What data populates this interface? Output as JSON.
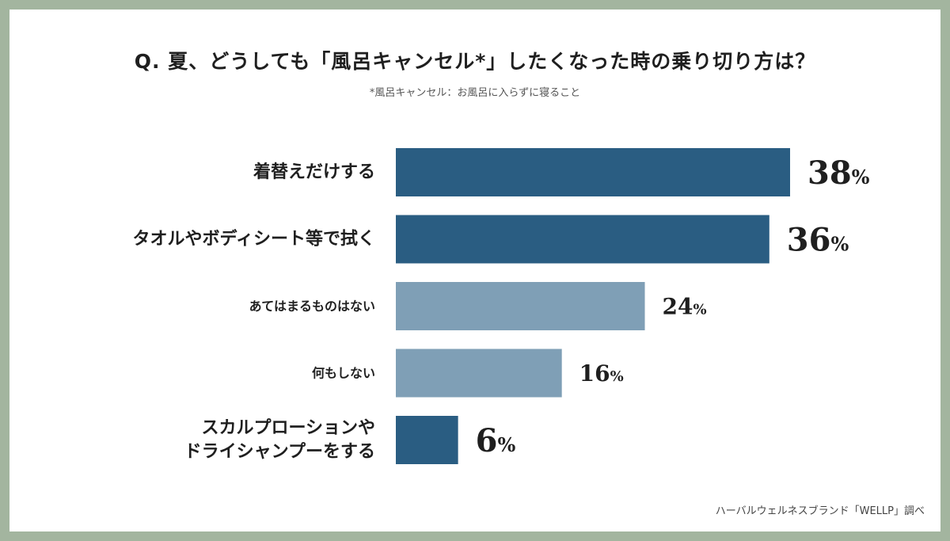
{
  "title": "Q. 夏、どうしても「風呂キャンセル*」したくなった時の乗り切り方は？",
  "subtitle": "*風呂キャンセル：お風呂に入らずに寝ること",
  "source": "ハーバルウェルネスブランド「WELLP」調べ",
  "colors": {
    "highlight": "#2a5d82",
    "normal": "#7f9fb6",
    "background": "#ffffff",
    "border": "#a3b59f"
  },
  "chart_data": {
    "type": "bar",
    "orientation": "horizontal",
    "unit": "%",
    "categories": [
      [
        "着替えだけする"
      ],
      [
        "タオルやボディシート等で拭く"
      ],
      [
        "あてはまるものはない"
      ],
      [
        "何もしない"
      ],
      [
        "スカルプローションや",
        "ドライシャンプーをする"
      ]
    ],
    "values": [
      38,
      36,
      24,
      16,
      6
    ],
    "value_labels": [
      "38",
      "36",
      "24",
      "16",
      "6"
    ],
    "highlighted": [
      true,
      true,
      false,
      false,
      true
    ],
    "xlim": [
      0,
      38
    ],
    "grid": false,
    "legend": "none"
  }
}
